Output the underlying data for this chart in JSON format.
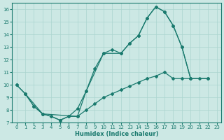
{
  "xlabel": "Humidex (Indice chaleur)",
  "bg_color": "#cce8e4",
  "line_color": "#1a7a6e",
  "grid_color": "#aad4cf",
  "xlim": [
    -0.5,
    23.5
  ],
  "ylim": [
    7,
    16.5
  ],
  "xticks": [
    0,
    1,
    2,
    3,
    4,
    5,
    6,
    7,
    8,
    9,
    10,
    11,
    12,
    13,
    14,
    15,
    16,
    17,
    18,
    19,
    20,
    21,
    22,
    23
  ],
  "yticks": [
    7,
    8,
    9,
    10,
    11,
    12,
    13,
    14,
    15,
    16
  ],
  "line1_x": [
    0,
    1,
    2,
    3,
    4,
    5,
    6,
    7,
    8,
    9,
    10,
    11,
    12,
    13,
    14,
    15,
    16,
    17,
    18,
    19,
    20
  ],
  "line1_y": [
    10,
    9.3,
    8.3,
    7.7,
    7.5,
    7.2,
    7.5,
    8.1,
    9.5,
    11.3,
    12.5,
    12.8,
    12.5,
    13.3,
    13.9,
    15.3,
    16.2,
    15.8,
    14.7,
    13.0,
    10.5
  ],
  "line2_x": [
    1,
    2,
    3,
    4,
    5,
    6,
    7,
    8,
    9,
    10,
    11,
    12,
    13,
    14,
    15,
    16,
    17,
    18,
    19,
    20,
    21,
    22
  ],
  "line2_y": [
    9.3,
    8.3,
    7.7,
    7.5,
    7.2,
    7.5,
    7.5,
    8.0,
    8.5,
    9.0,
    9.3,
    9.6,
    9.9,
    10.2,
    10.5,
    10.7,
    11.0,
    10.5,
    10.5,
    10.5,
    10.5,
    10.5
  ],
  "line3_x": [
    0,
    1,
    3,
    7,
    8,
    10,
    12,
    13,
    14,
    15,
    16,
    17,
    18,
    19,
    20,
    22
  ],
  "line3_y": [
    10,
    9.3,
    7.7,
    7.5,
    9.5,
    12.5,
    12.5,
    13.3,
    13.9,
    15.3,
    16.2,
    15.8,
    14.7,
    13.0,
    10.5,
    10.5
  ]
}
